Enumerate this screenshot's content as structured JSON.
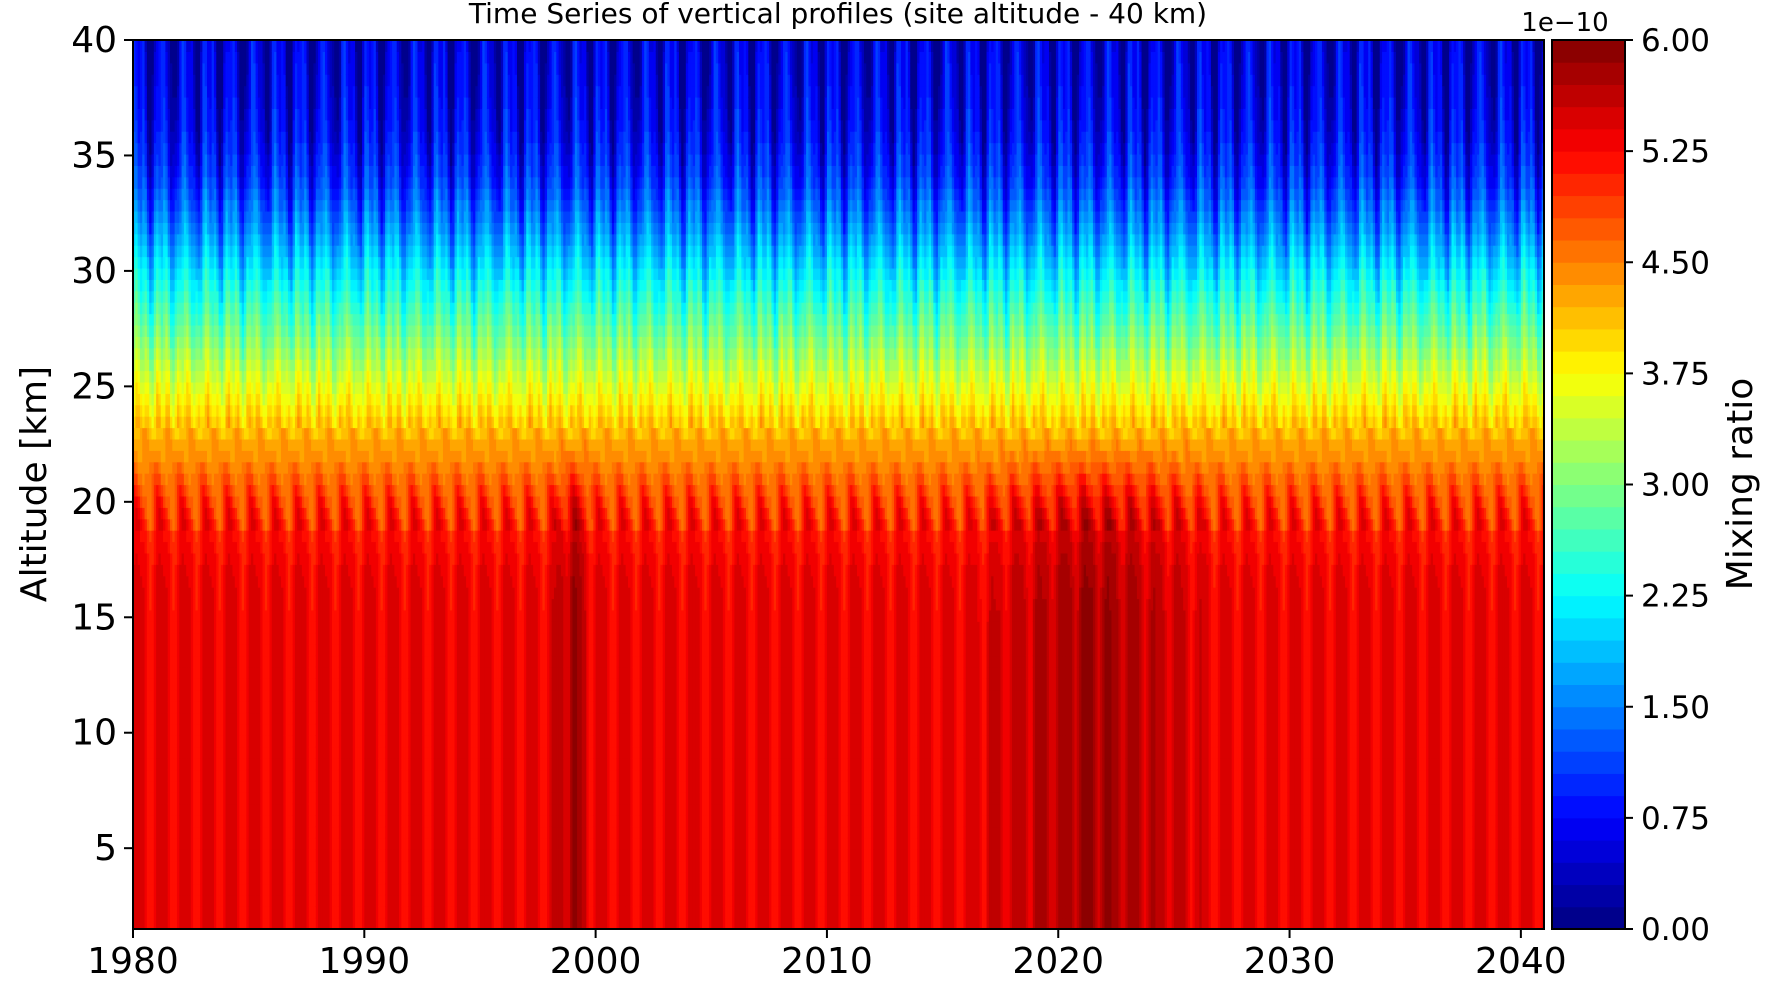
{
  "chart_data": {
    "type": "heatmap",
    "subtype": "filled-contour time-altitude section",
    "title": "Time Series of vertical profiles (site altitude - 40 km)",
    "xlabel": "",
    "ylabel": "Altitude [km]",
    "xlim": [
      1980,
      2041
    ],
    "ylim": [
      1.5,
      40
    ],
    "x_ticks": [
      1980,
      1990,
      2000,
      2010,
      2020,
      2030,
      2040
    ],
    "y_ticks": [
      5,
      10,
      15,
      20,
      25,
      30,
      35,
      40
    ],
    "colorbar": {
      "label": "Mixing ratio",
      "multiplier": "1e−10",
      "range": [
        0,
        6
      ],
      "ticks": [
        "0.00",
        "0.75",
        "1.50",
        "2.25",
        "3.00",
        "3.75",
        "4.50",
        "5.25",
        "6.00"
      ],
      "levels": 40,
      "colormap": "jet"
    },
    "profile": {
      "altitude_km": [
        1.5,
        5,
        10,
        15,
        17,
        19,
        20,
        21,
        22,
        23,
        24,
        25,
        26,
        27,
        28,
        29,
        30,
        31,
        32,
        33,
        34,
        35,
        36,
        38,
        40
      ],
      "mean_mixing_ratio": [
        5.35,
        5.35,
        5.35,
        5.35,
        5.3,
        5.1,
        4.9,
        4.65,
        4.4,
        4.2,
        3.9,
        3.6,
        3.3,
        3.0,
        2.7,
        2.4,
        2.1,
        1.8,
        1.5,
        1.25,
        1.0,
        0.85,
        0.7,
        0.55,
        0.45
      ]
    },
    "enhanced_periods": [
      {
        "start": 1998,
        "end": 2000,
        "max_value": 5.9
      },
      {
        "start": 2016,
        "end": 2027,
        "max_value": 5.8
      }
    ],
    "oscillation": "seasonal cycle, period ~1 year"
  }
}
